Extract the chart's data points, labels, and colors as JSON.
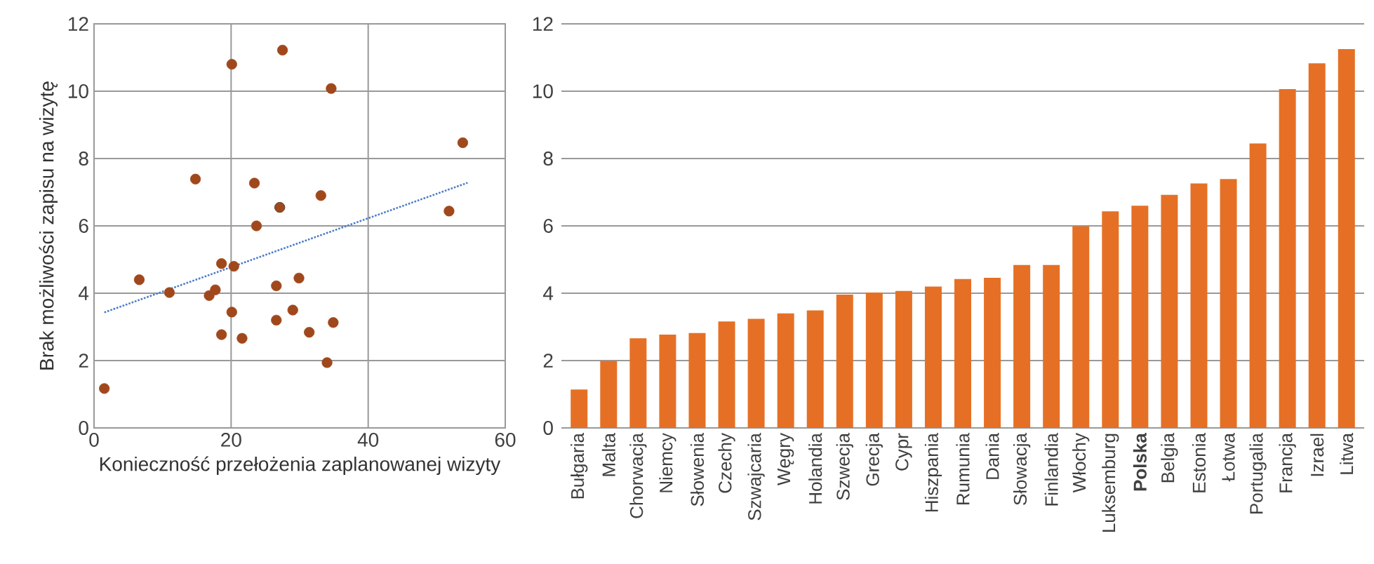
{
  "chart_data": [
    {
      "type": "scatter",
      "xlabel": "Konieczność przełożenia zaplanowanej wizyty",
      "ylabel": "Brak możliwości zapisu na wizytę",
      "xlim": [
        0,
        60
      ],
      "xticks": [
        0,
        20,
        40,
        60
      ],
      "ylim": [
        0,
        12
      ],
      "yticks": [
        0,
        2,
        4,
        6,
        8,
        10,
        12
      ],
      "grid": true,
      "series": [
        {
          "type": "scatter",
          "marker": "circle",
          "color": "#a0481c",
          "colors": [
            "#a0481c",
            "#a0481c",
            "#a0481c",
            "#a0481c",
            "#a0481c",
            "#a0481c",
            "#a0481c",
            "#a0481c",
            "#a0481c",
            "#a0481c",
            "#a0481c",
            "#a0481c",
            "#a0481c",
            "#a0481c",
            "#a0481c",
            "#a0481c",
            "#3a2314",
            "#a0481c",
            "#a0481c",
            "#a0481c",
            "#a0481c",
            "#a0481c",
            "#a0481c",
            "#a0481c",
            "#a0481c",
            "#a0481c",
            "#a0481c"
          ],
          "x": [
            1.5,
            6.6,
            11.0,
            14.8,
            16.8,
            17.7,
            18.6,
            18.6,
            20.1,
            20.1,
            20.4,
            21.6,
            23.4,
            23.7,
            26.6,
            26.6,
            27.1,
            27.5,
            29.0,
            29.9,
            31.4,
            33.1,
            34.0,
            34.6,
            34.9,
            51.8,
            53.8
          ],
          "values": [
            1.17,
            4.4,
            4.02,
            7.39,
            3.93,
            4.1,
            4.88,
            2.77,
            10.8,
            3.44,
            4.8,
            2.66,
            7.27,
            6.0,
            4.22,
            3.2,
            6.55,
            11.22,
            3.5,
            4.45,
            2.84,
            6.9,
            1.94,
            10.08,
            3.13,
            6.44,
            8.47
          ]
        },
        {
          "type": "line",
          "color": "#4a7cc8",
          "line_style": "dotted",
          "marker": "none",
          "x": [
            1.5,
            54.5
          ],
          "values": [
            3.43,
            7.28
          ]
        }
      ]
    },
    {
      "type": "bar",
      "categories": [
        "Bułgaria",
        "Malta",
        "Chorwacja",
        "Niemcy",
        "Słowenia",
        "Czechy",
        "Szwajcaria",
        "Węgry",
        "Holandia",
        "Szwecja",
        "Grecja",
        "Cypr",
        "Hiszpania",
        "Rumunia",
        "Dania",
        "Słowacja",
        "Finlandia",
        "Włochy",
        "Luksemburg",
        "**Polska**",
        "Belgia",
        "Estonia",
        "Łotwa",
        "Portugalia",
        "Francja",
        "Izrael",
        "Litwa"
      ],
      "values": [
        1.14,
        1.99,
        2.66,
        2.77,
        2.82,
        3.16,
        3.24,
        3.4,
        3.49,
        3.96,
        4.02,
        4.07,
        4.2,
        4.42,
        4.46,
        4.84,
        4.84,
        5.99,
        6.43,
        6.6,
        6.92,
        7.26,
        7.39,
        8.45,
        10.06,
        10.83,
        11.25
      ],
      "color": "#e57025",
      "ylim": [
        0,
        12
      ],
      "yticks": [
        0,
        2,
        4,
        6,
        8,
        10,
        12
      ],
      "grid": "y"
    }
  ]
}
